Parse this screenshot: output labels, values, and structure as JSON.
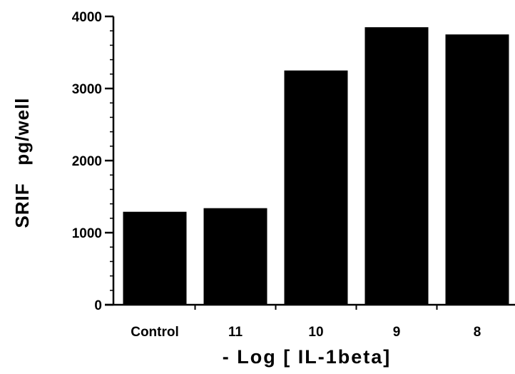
{
  "chart_data": {
    "type": "bar",
    "categories": [
      "Control",
      "11",
      "10",
      "9",
      "8"
    ],
    "values": [
      1290,
      1340,
      3250,
      3850,
      3750
    ],
    "title": "",
    "xlabel": "- Log [ IL-1beta]",
    "ylabel": "SRIF   pg/well",
    "ylim": [
      0,
      4000
    ],
    "yticks": [
      0,
      1000,
      2000,
      3000,
      4000
    ],
    "ytick_labels": [
      "0",
      "1000",
      "2000",
      "3000",
      "4000"
    ],
    "minor_ytick_step": 200,
    "grid": false,
    "legend": "none",
    "bar_color": "#000000"
  }
}
